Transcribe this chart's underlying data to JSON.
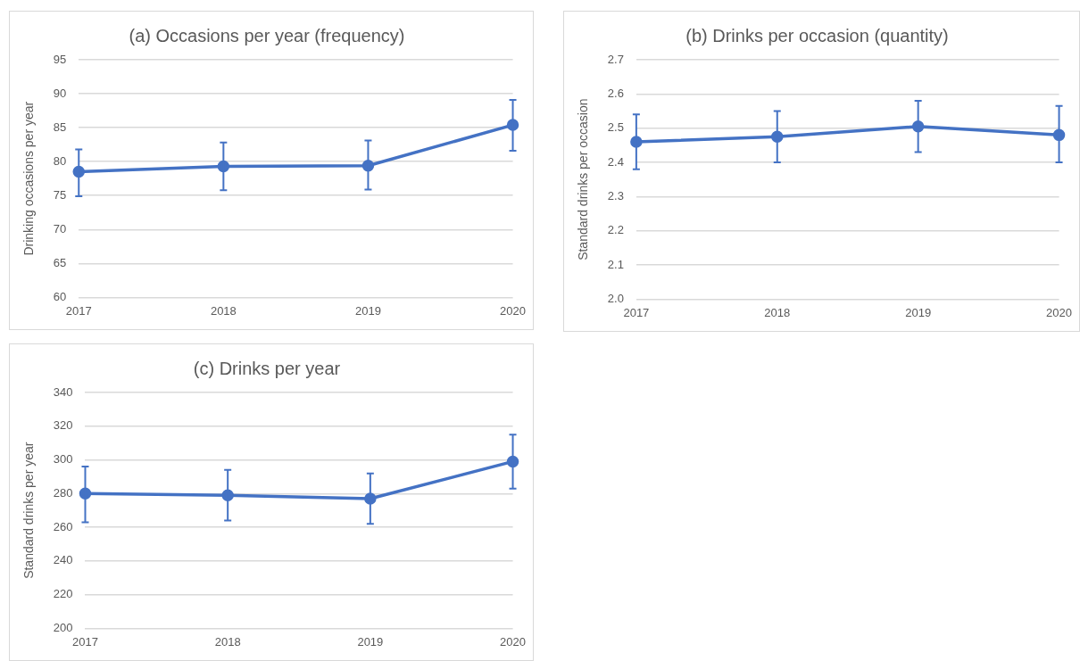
{
  "chart_data": [
    {
      "type": "line",
      "title": "(a) Occasions per year (frequency)",
      "ylabel": "Drinking occasions per year",
      "categories": [
        "2017",
        "2018",
        "2019",
        "2020"
      ],
      "series": [
        {
          "color": "#4472c4",
          "values": [
            78.5,
            79.3,
            79.4,
            85.4
          ],
          "errors": [
            [
              74.9,
              81.8
            ],
            [
              75.8,
              82.8
            ],
            [
              75.9,
              83.1
            ],
            [
              81.6,
              89.1
            ]
          ]
        }
      ],
      "ylim": [
        60,
        95
      ],
      "yticks": [
        60,
        65,
        70,
        75,
        80,
        85,
        90,
        95
      ],
      "grid": "y",
      "marker": "circle"
    },
    {
      "type": "line",
      "title": "(b) Drinks per occasion (quantity)",
      "ylabel": "Standard drinks per occasion",
      "categories": [
        "2017",
        "2018",
        "2019",
        "2020"
      ],
      "series": [
        {
          "color": "#4472c4",
          "values": [
            2.46,
            2.475,
            2.505,
            2.48
          ],
          "errors": [
            [
              2.38,
              2.54
            ],
            [
              2.4,
              2.55
            ],
            [
              2.43,
              2.58
            ],
            [
              2.4,
              2.565
            ]
          ]
        }
      ],
      "ylim": [
        2.0,
        2.7
      ],
      "yticks": [
        {
          "value": 2.0,
          "label": "2.0"
        },
        {
          "value": 2.1,
          "label": "2.1"
        },
        {
          "value": 2.2,
          "label": "2.2"
        },
        {
          "value": 2.3,
          "label": "2.3"
        },
        {
          "value": 2.4,
          "label": "2.4"
        },
        {
          "value": 2.5,
          "label": "2.5"
        },
        {
          "value": 2.6,
          "label": "2.6"
        },
        {
          "value": 2.7,
          "label": "2.7"
        }
      ],
      "grid": "y",
      "marker": "circle"
    },
    {
      "type": "line",
      "title": "(c) Drinks per year",
      "ylabel": "Standard drinks per year",
      "categories": [
        "2017",
        "2018",
        "2019",
        "2020"
      ],
      "series": [
        {
          "color": "#4472c4",
          "values": [
            280,
            279,
            277,
            299
          ],
          "errors": [
            [
              263,
              296
            ],
            [
              264,
              294
            ],
            [
              262,
              292
            ],
            [
              283,
              315
            ]
          ]
        }
      ],
      "ylim": [
        200,
        340
      ],
      "yticks": [
        200,
        220,
        240,
        260,
        280,
        300,
        320,
        340
      ],
      "grid": "y",
      "marker": "circle"
    }
  ]
}
